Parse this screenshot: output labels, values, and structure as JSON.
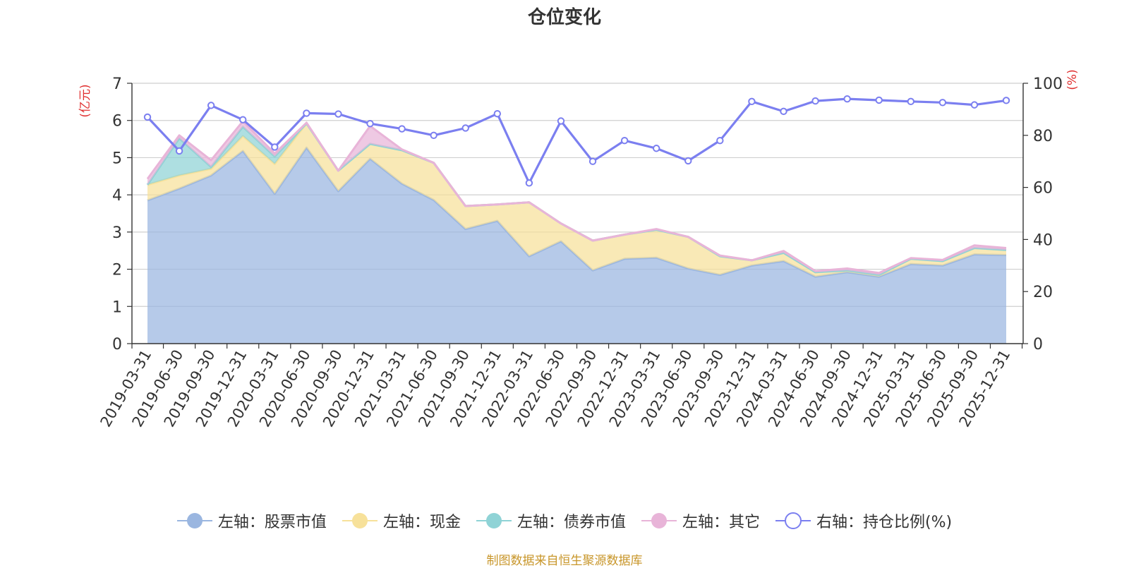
{
  "chart_data": {
    "type": "area",
    "title": "仓位变化",
    "source": "制图数据来自恒生聚源数据库",
    "y_left_label": "(亿元)",
    "y_right_label": "(%)",
    "y_left_range": [
      0,
      7
    ],
    "y_right_range": [
      0,
      100
    ],
    "y_left_ticks": [
      "0",
      "1",
      "2",
      "3",
      "4",
      "5",
      "6",
      "7"
    ],
    "y_right_ticks": [
      "0",
      "20",
      "40",
      "60",
      "80",
      "100"
    ],
    "categories": [
      "2019-03-31",
      "2019-06-30",
      "2019-09-30",
      "2019-12-31",
      "2020-03-31",
      "2020-06-30",
      "2020-09-30",
      "2020-12-31",
      "2021-03-31",
      "2021-06-30",
      "2021-09-30",
      "2021-12-31",
      "2022-03-31",
      "2022-06-30",
      "2022-09-30",
      "2022-12-31",
      "2023-03-31",
      "2023-06-30",
      "2023-09-30",
      "2023-12-31",
      "2024-03-31",
      "2024-06-30",
      "2024-09-30",
      "2024-12-31",
      "2025-03-31",
      "2025-06-30",
      "2025-09-30",
      "2025-12-31"
    ],
    "series": [
      {
        "name": "左轴：股票市值",
        "axis": "left",
        "color": "#9ab6e0",
        "values": [
          3.85,
          4.17,
          4.52,
          5.18,
          4.03,
          5.27,
          4.1,
          4.97,
          4.3,
          3.86,
          3.08,
          3.3,
          2.35,
          2.75,
          1.97,
          2.28,
          2.31,
          2.02,
          1.85,
          2.1,
          2.22,
          1.8,
          1.92,
          1.8,
          2.14,
          2.1,
          2.4,
          2.38
        ]
      },
      {
        "name": "左轴：现金",
        "axis": "left",
        "color": "#f7e19a",
        "values": [
          0.42,
          0.35,
          0.18,
          0.4,
          0.8,
          0.65,
          0.55,
          0.4,
          0.9,
          1.0,
          0.62,
          0.44,
          1.45,
          0.48,
          0.8,
          0.65,
          0.75,
          0.85,
          0.5,
          0.14,
          0.22,
          0.12,
          0.05,
          0.05,
          0.14,
          0.12,
          0.17,
          0.14
        ]
      },
      {
        "name": "左轴：债券市值",
        "axis": "left",
        "color": "#8fd3d6",
        "values": [
          0.0,
          1.0,
          0.05,
          0.25,
          0.2,
          0.0,
          0.0,
          0.0,
          0.0,
          0.0,
          0.0,
          0.0,
          0.0,
          0.0,
          0.0,
          0.0,
          0.0,
          0.0,
          0.0,
          0.0,
          0.0,
          0.0,
          0.0,
          0.0,
          0.0,
          0.0,
          0.0,
          0.0
        ]
      },
      {
        "name": "左轴：其它",
        "axis": "left",
        "color": "#e8b4d8",
        "values": [
          0.16,
          0.08,
          0.18,
          0.15,
          0.08,
          0.02,
          0.0,
          0.48,
          0.02,
          0.0,
          0.0,
          0.0,
          0.0,
          0.0,
          0.0,
          0.0,
          0.02,
          0.0,
          0.02,
          0.0,
          0.05,
          0.03,
          0.05,
          0.05,
          0.02,
          0.03,
          0.07,
          0.05
        ]
      },
      {
        "name": "右轴：持仓比例(%)",
        "axis": "right",
        "color": "#7b7ff0",
        "values": [
          87,
          74,
          91.5,
          86,
          75.5,
          88.5,
          88.2,
          84.5,
          82.5,
          80,
          82.8,
          88.3,
          61.7,
          85.5,
          70,
          78,
          75,
          70.2,
          78,
          93,
          89.2,
          93.2,
          94,
          93.5,
          93,
          92.6,
          91.7,
          93.4
        ]
      }
    ]
  }
}
